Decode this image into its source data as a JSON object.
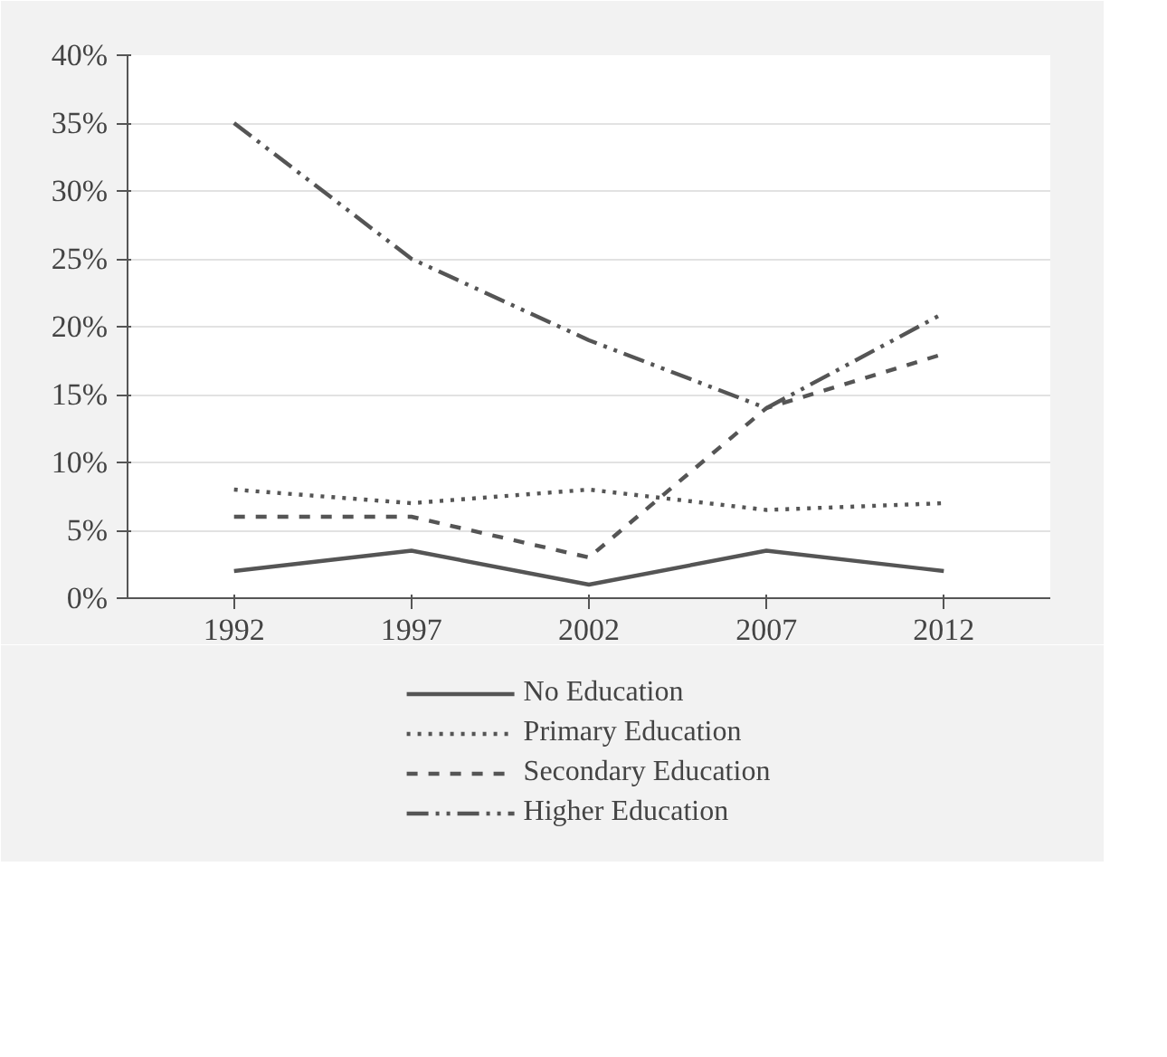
{
  "chart_data": {
    "type": "line",
    "categories": [
      "1992",
      "1997",
      "2002",
      "2007",
      "2012"
    ],
    "series": [
      {
        "name": "No Education",
        "color": "#555555",
        "line_style": "solid",
        "values": [
          2,
          3.5,
          1,
          3.5,
          2
        ]
      },
      {
        "name": "Primary Education",
        "color": "#555555",
        "line_style": "dotted",
        "values": [
          8,
          7,
          8,
          6.5,
          7
        ]
      },
      {
        "name": "Secondary Education",
        "color": "#555555",
        "line_style": "dashed",
        "values": [
          6,
          6,
          3,
          14,
          18
        ]
      },
      {
        "name": "Higher Education",
        "color": "#555555",
        "line_style": "dashdot",
        "values": [
          35,
          25,
          19,
          14,
          21
        ]
      }
    ],
    "ylim": [
      0,
      40
    ],
    "yticks": [
      {
        "value": 0,
        "label": "0%"
      },
      {
        "value": 5,
        "label": "5%"
      },
      {
        "value": 10,
        "label": "10%"
      },
      {
        "value": 15,
        "label": "15%"
      },
      {
        "value": 20,
        "label": "20%"
      },
      {
        "value": 25,
        "label": "25%"
      },
      {
        "value": 30,
        "label": "30%"
      },
      {
        "value": 35,
        "label": "35%"
      },
      {
        "value": 40,
        "label": "40%"
      }
    ],
    "grid": "y",
    "legend": "bottom",
    "marker": "none"
  }
}
